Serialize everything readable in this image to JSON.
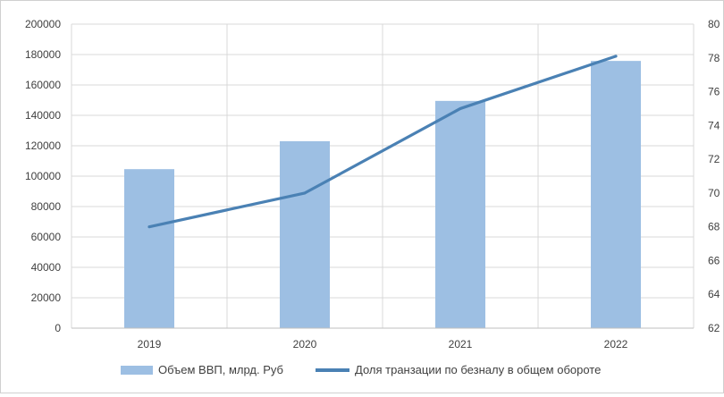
{
  "chart_data": {
    "type": "bar",
    "categories": [
      "2019",
      "2020",
      "2021",
      "2022"
    ],
    "series": [
      {
        "name": "Объем ВВП, млрд. Руб",
        "type": "bar",
        "axis": "left",
        "color": "#9dbfe3",
        "values": [
          104600,
          123000,
          149500,
          175800
        ]
      },
      {
        "name": "Доля транзации по безналу в общем обороте",
        "type": "line",
        "axis": "right",
        "color": "#4a81b4",
        "values": [
          68,
          70,
          75,
          78.1
        ]
      }
    ],
    "y_left": {
      "min": 0,
      "max": 200000,
      "ticks": [
        "0",
        "20000",
        "40000",
        "60000",
        "80000",
        "100000",
        "120000",
        "140000",
        "160000",
        "180000",
        "200000"
      ]
    },
    "y_right": {
      "min": 62,
      "max": 80,
      "ticks": [
        "62",
        "64",
        "66",
        "68",
        "70",
        "72",
        "74",
        "76",
        "78",
        "80"
      ]
    },
    "grid": true,
    "legend_position": "bottom"
  }
}
